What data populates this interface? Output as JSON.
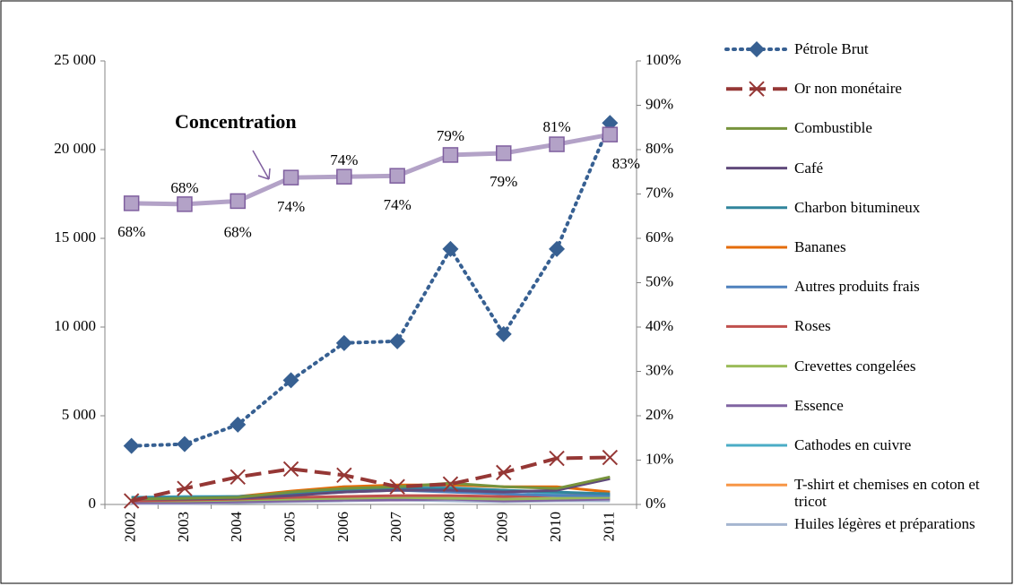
{
  "chart_data": {
    "type": "line",
    "categories": [
      "2002",
      "2003",
      "2004",
      "2005",
      "2006",
      "2007",
      "2008",
      "2009",
      "2010",
      "2011"
    ],
    "ylim": [
      0,
      25000
    ],
    "yticks": [
      {
        "value": 0,
        "label": "0"
      },
      {
        "value": 5000,
        "label": "5 000"
      },
      {
        "value": 10000,
        "label": "10 000"
      },
      {
        "value": 15000,
        "label": "15 000"
      },
      {
        "value": 20000,
        "label": "20 000"
      },
      {
        "value": 25000,
        "label": "25 000"
      }
    ],
    "y2lim": [
      0,
      100
    ],
    "y2ticks": [
      {
        "value": 0,
        "label": "0%"
      },
      {
        "value": 10,
        "label": "10%"
      },
      {
        "value": 20,
        "label": "20%"
      },
      {
        "value": 30,
        "label": "30%"
      },
      {
        "value": 40,
        "label": "40%"
      },
      {
        "value": 50,
        "label": "50%"
      },
      {
        "value": 60,
        "label": "60%"
      },
      {
        "value": 70,
        "label": "70%"
      },
      {
        "value": 80,
        "label": "80%"
      },
      {
        "value": 90,
        "label": "90%"
      },
      {
        "value": 100,
        "label": "100%"
      }
    ],
    "grid": false,
    "legend": "right",
    "annotation": "Concentration",
    "series": [
      {
        "name": "Pétrole Brut",
        "color": "#376092",
        "style": "dotted",
        "marker": "diamond",
        "values": [
          3300,
          3400,
          4500,
          7000,
          9100,
          9200,
          14400,
          9600,
          14400,
          21500
        ]
      },
      {
        "name": "Or non monétaire",
        "color": "#953735",
        "style": "dashed",
        "marker": "x",
        "values": [
          200,
          900,
          1550,
          2000,
          1650,
          1000,
          1150,
          1800,
          2600,
          2650
        ]
      },
      {
        "name": "Combustible",
        "color": "#77933c",
        "style": "solid",
        "values": [
          300,
          350,
          400,
          700,
          900,
          1000,
          1200,
          1000,
          900,
          1550
        ]
      },
      {
        "name": "Café",
        "color": "#604a7b",
        "style": "solid",
        "values": [
          300,
          300,
          350,
          500,
          700,
          800,
          800,
          700,
          800,
          1450
        ]
      },
      {
        "name": "Charbon bitumineux",
        "color": "#31859c",
        "style": "solid",
        "values": [
          400,
          400,
          450,
          600,
          800,
          900,
          900,
          800,
          700,
          600
        ]
      },
      {
        "name": "Bananes",
        "color": "#e46c0a",
        "style": "solid",
        "values": [
          300,
          350,
          450,
          750,
          1000,
          1100,
          1100,
          1000,
          1000,
          700
        ]
      },
      {
        "name": "Autres produits frais",
        "color": "#4f81bd",
        "style": "solid",
        "values": [
          300,
          350,
          400,
          550,
          700,
          800,
          700,
          600,
          500,
          500
        ]
      },
      {
        "name": "Roses",
        "color": "#c0504d",
        "style": "solid",
        "values": [
          200,
          250,
          300,
          400,
          450,
          500,
          500,
          450,
          500,
          550
        ]
      },
      {
        "name": "Crevettes congelées",
        "color": "#9bbb59",
        "style": "solid",
        "values": [
          200,
          200,
          250,
          300,
          350,
          400,
          350,
          300,
          350,
          400
        ]
      },
      {
        "name": "Essence",
        "color": "#8064a2",
        "style": "solid",
        "values": [
          100,
          100,
          150,
          200,
          250,
          250,
          300,
          200,
          250,
          300
        ]
      },
      {
        "name": "Cathodes en cuivre",
        "color": "#4bacc6",
        "style": "solid",
        "values": [
          400,
          450,
          450,
          650,
          1000,
          1000,
          950,
          800,
          600,
          400
        ]
      },
      {
        "name": "T-shirt et chemises en coton et tricot",
        "color": "#f79646",
        "style": "solid",
        "values": [
          100,
          150,
          200,
          250,
          300,
          350,
          350,
          250,
          300,
          300
        ]
      },
      {
        "name": "Huiles légères et préparations",
        "color": "#a5b5d0",
        "style": "solid",
        "values": [
          50,
          50,
          100,
          150,
          200,
          250,
          200,
          150,
          200,
          200
        ]
      }
    ],
    "concentration": {
      "axis": "y2",
      "color": "#b3a2c7",
      "marker": "square",
      "values": [
        67.9,
        67.7,
        68.4,
        73.7,
        73.9,
        74.1,
        78.8,
        79.2,
        81.2,
        83.4
      ],
      "value_labels": [
        "68%",
        "68%",
        "68%",
        "74%",
        "74%",
        "74%",
        "79%",
        "79%",
        "81%",
        "83%"
      ]
    }
  }
}
